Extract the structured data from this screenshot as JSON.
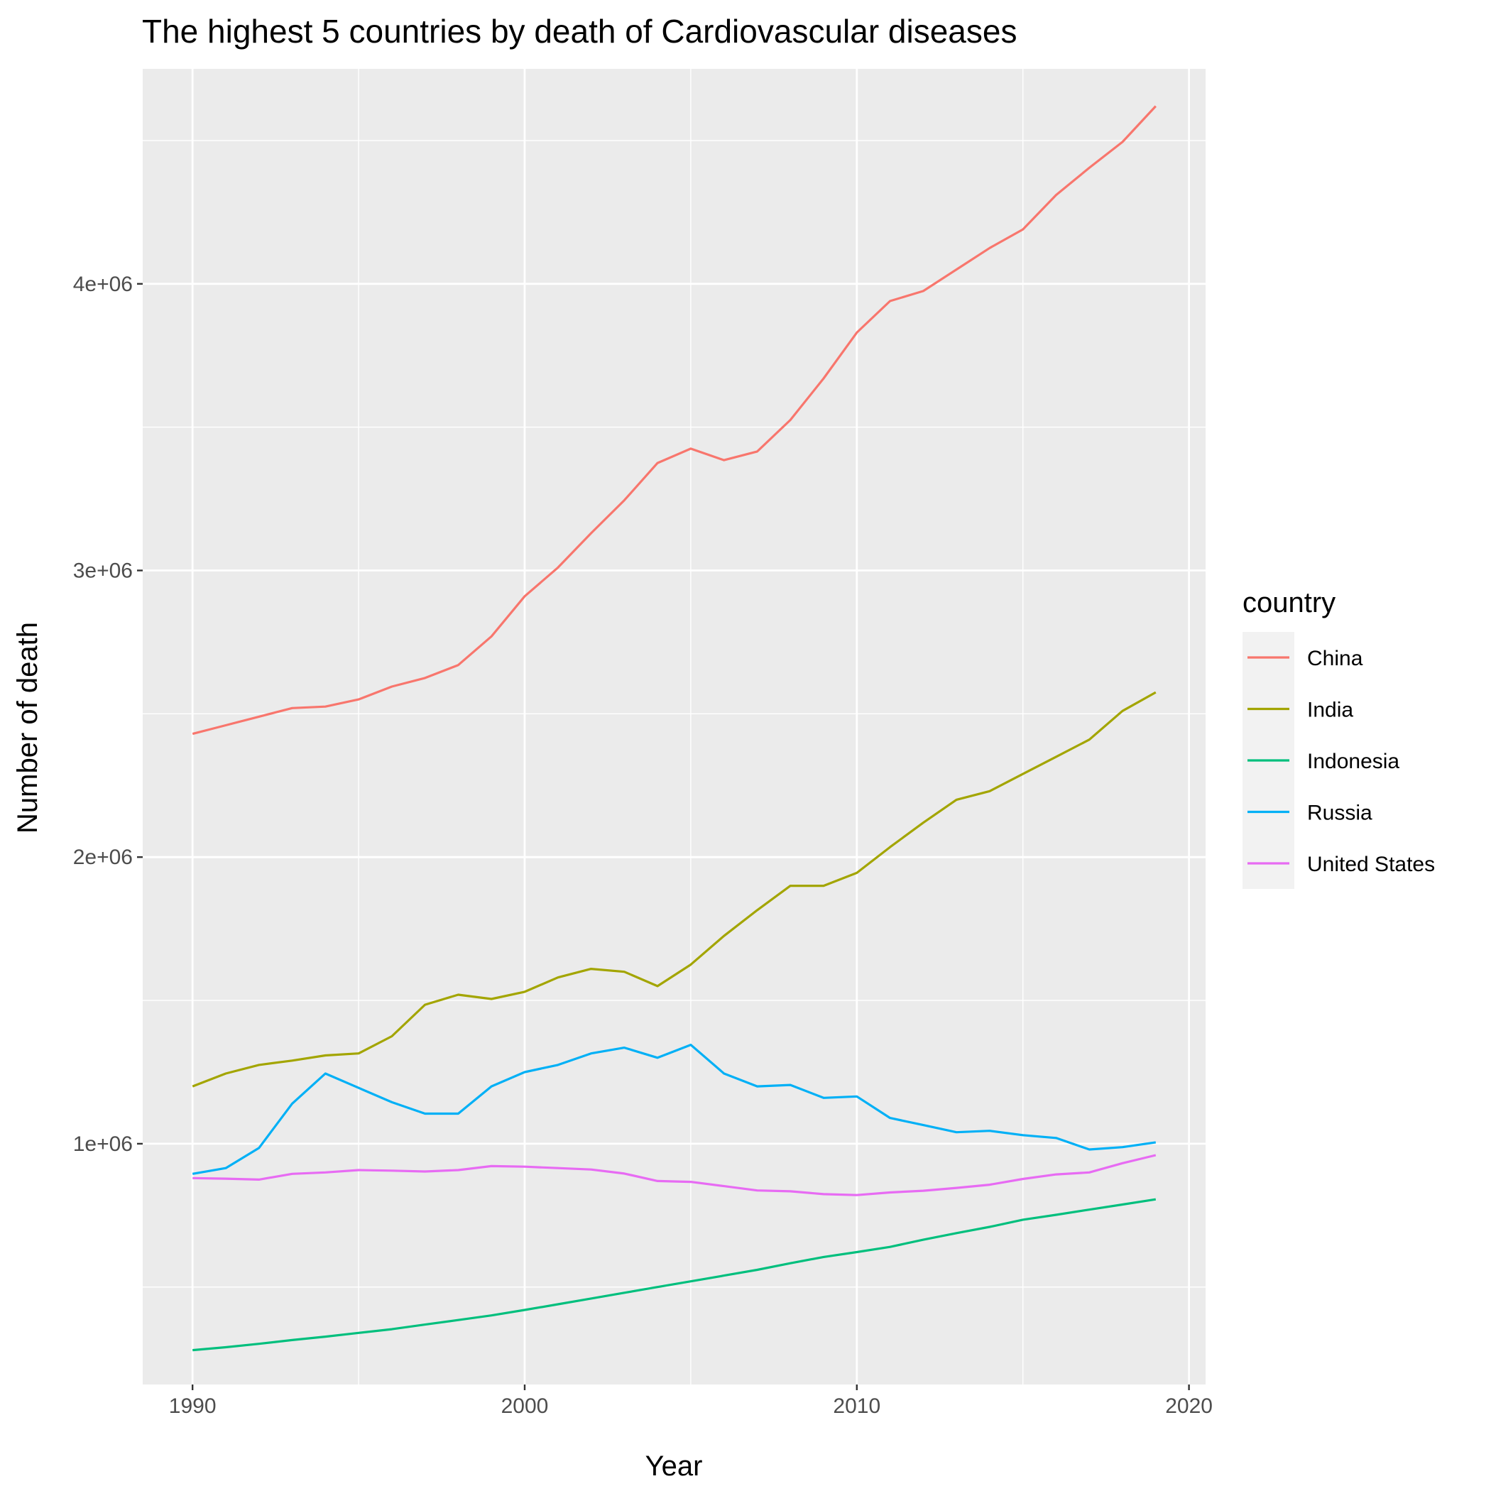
{
  "chart_data": {
    "type": "line",
    "title": "The highest 5 countries by death of Cardiovascular diseases",
    "xlabel": "Year",
    "ylabel": "Number of death",
    "xlim": [
      1988.5,
      2020.5
    ],
    "ylim": [
      160000,
      4750000
    ],
    "x_ticks": [
      1990,
      2000,
      2010,
      2020
    ],
    "x_tick_labels": [
      "1990",
      "2000",
      "2010",
      "2020"
    ],
    "x_minor_ticks": [
      1995,
      2005,
      2015
    ],
    "y_ticks": [
      1000000,
      2000000,
      3000000,
      4000000
    ],
    "y_tick_labels": [
      "1e+06",
      "2e+06",
      "3e+06",
      "4e+06"
    ],
    "y_minor_ticks": [
      500000,
      1500000,
      2500000,
      3500000,
      4500000
    ],
    "grid": true,
    "legend_title": "country",
    "legend_position": "right",
    "x": [
      1990,
      1991,
      1992,
      1993,
      1994,
      1995,
      1996,
      1997,
      1998,
      1999,
      2000,
      2001,
      2002,
      2003,
      2004,
      2005,
      2006,
      2007,
      2008,
      2009,
      2010,
      2011,
      2012,
      2013,
      2014,
      2015,
      2016,
      2017,
      2018,
      2019
    ],
    "series": [
      {
        "name": "China",
        "color": "#F8766D",
        "values": [
          2430000,
          2460000,
          2490000,
          2520000,
          2525000,
          2550000,
          2595000,
          2625000,
          2670000,
          2770000,
          2910000,
          3010000,
          3130000,
          3245000,
          3375000,
          3425000,
          3385000,
          3415000,
          3525000,
          3670000,
          3830000,
          3940000,
          3975000,
          4050000,
          4125000,
          4190000,
          4310000,
          4405000,
          4495000,
          4620000
        ]
      },
      {
        "name": "India",
        "color": "#A3A500",
        "values": [
          1200000,
          1245000,
          1275000,
          1290000,
          1308000,
          1315000,
          1375000,
          1485000,
          1520000,
          1505000,
          1530000,
          1580000,
          1610000,
          1600000,
          1550000,
          1625000,
          1725000,
          1815000,
          1900000,
          1900000,
          1945000,
          2035000,
          2120000,
          2200000,
          2230000,
          2290000,
          2350000,
          2410000,
          2510000,
          2575000
        ]
      },
      {
        "name": "Indonesia",
        "color": "#00BF7D",
        "values": [
          280000,
          290000,
          302000,
          315000,
          327000,
          340000,
          353000,
          369000,
          385000,
          401000,
          420000,
          440000,
          460000,
          480000,
          500000,
          520000,
          540000,
          560000,
          583000,
          605000,
          622000,
          640000,
          665000,
          688000,
          710000,
          735000,
          752000,
          770000,
          788000,
          806000
        ]
      },
      {
        "name": "Russia",
        "color": "#00B0F6",
        "values": [
          895000,
          915000,
          985000,
          1140000,
          1245000,
          1195000,
          1145000,
          1105000,
          1105000,
          1200000,
          1250000,
          1275000,
          1315000,
          1335000,
          1300000,
          1345000,
          1245000,
          1200000,
          1205000,
          1160000,
          1165000,
          1090000,
          1065000,
          1040000,
          1045000,
          1030000,
          1020000,
          980000,
          988000,
          1005000
        ]
      },
      {
        "name": "United States",
        "color": "#E76BF3",
        "values": [
          880000,
          878000,
          875000,
          895000,
          900000,
          908000,
          906000,
          903000,
          908000,
          922000,
          920000,
          915000,
          910000,
          896000,
          870000,
          867000,
          852000,
          837000,
          834000,
          824000,
          821000,
          830000,
          836000,
          846000,
          857000,
          877000,
          893000,
          900000,
          932000,
          960000
        ]
      }
    ]
  }
}
